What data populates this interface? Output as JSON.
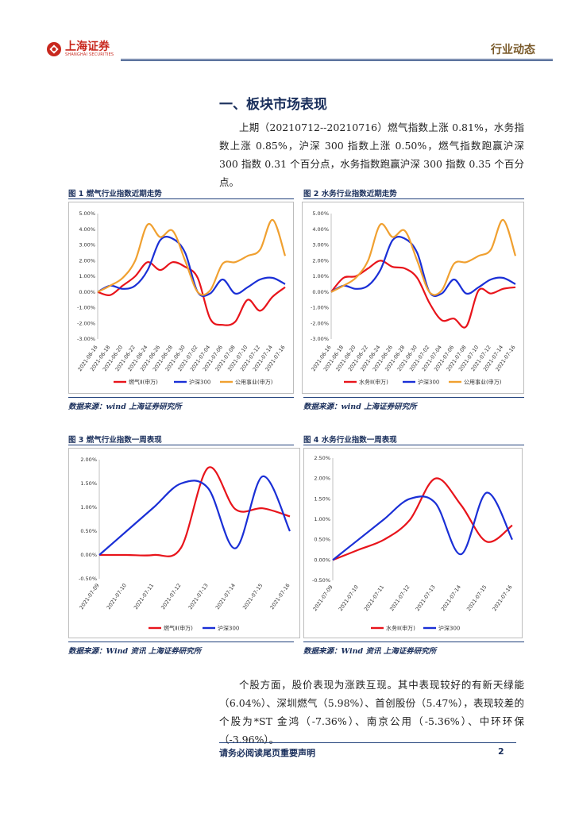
{
  "header": {
    "brand_cn": "上海证券",
    "brand_en": "SHANGHAI SECURITIES",
    "doc_type": "行业动态"
  },
  "section": {
    "title": "一、板块市场表现",
    "paragraph1": "上期（20210712--20210716）燃气指数上涨 0.81%，水务指数上涨 0.85%，沪深 300 指数上涨 0.50%，燃气指数跑赢沪深 300 指数 0.31 个百分点，水务指数跑赢沪深 300 指数 0.35 个百分点。",
    "paragraph2": "个股方面，股价表现为涨跌互现。其中表现较好的有新天绿能（6.04%）、深圳燃气（5.98%）、首创股份（5.47%），表现较差的个股为*ST 金鸿（-7.36%）、南京公用（-5.36%）、中环环保（-3.96%）。"
  },
  "figures": {
    "fig1_title": "图 1 燃气行业指数近期走势",
    "fig2_title": "图 2 水务行业指数近期走势",
    "fig3_title": "图 3  燃气行业指数一周表现",
    "fig4_title": "图 4  水务行业指数一周表现",
    "source1": "数据来源：wind 上海证券研究所",
    "source2": "数据来源：wind 上海证券研究所",
    "source3": "数据来源：Wind 资讯  上海证券研究所",
    "source4": "数据来源：Wind 资讯  上海证券研究所"
  },
  "footer": {
    "disclaimer": "请务必阅读尾页重要声明",
    "page": "2"
  },
  "colors": {
    "red": "#e8141b",
    "blue": "#1a2fd6",
    "orange": "#f0a030",
    "navy": "#1a2f5c",
    "brand": "#c8281e"
  },
  "chart_data": [
    {
      "type": "line",
      "title": "图 1 燃气行业指数近期走势",
      "categories": [
        "2021-06-16",
        "2021-06-18",
        "2021-06-20",
        "2021-06-22",
        "2021-06-24",
        "2021-06-26",
        "2021-06-28",
        "2021-06-30",
        "2021-07-02",
        "2021-07-04",
        "2021-07-06",
        "2021-07-08",
        "2021-07-10",
        "2021-07-12",
        "2021-07-14",
        "2021-07-16"
      ],
      "tick_labels": [
        "2021-06-16",
        "2021-06-18",
        "2021-06-20",
        "2021-06-22",
        "2021-06-24",
        "2021-06-26",
        "2021-06-28",
        "2021-06-30",
        "2021-07-02",
        "2021-07-04",
        "2021-07-06",
        "2021-07-08",
        "2021-07-10",
        "2021-07-12",
        "2021-07-14",
        "2021-07-16"
      ],
      "y_tick_labels": [
        "5.00%",
        "4.00%",
        "3.00%",
        "2.00%",
        "1.00%",
        "0.00%",
        "-1.00%",
        "-2.00%",
        "-3.00%"
      ],
      "ylim": [
        -3,
        5
      ],
      "series": [
        {
          "name": "燃气Ⅱ(申万)",
          "color": "#e8141b",
          "values": [
            0.0,
            -0.2,
            0.4,
            1.0,
            1.9,
            1.4,
            1.9,
            1.6,
            0.9,
            -1.7,
            -2.1,
            -1.9,
            -0.5,
            -1.2,
            -0.3,
            0.3
          ]
        },
        {
          "name": "沪深300",
          "color": "#1a2fd6",
          "values": [
            0.0,
            0.4,
            0.2,
            0.4,
            1.4,
            3.3,
            3.4,
            2.5,
            0.0,
            -0.1,
            0.8,
            -0.1,
            0.3,
            0.8,
            0.9,
            0.5
          ]
        },
        {
          "name": "公用事业(申万)",
          "color": "#f0a030",
          "values": [
            0.0,
            0.4,
            0.9,
            2.0,
            4.3,
            3.5,
            3.9,
            2.0,
            0.0,
            0.1,
            1.8,
            1.9,
            2.3,
            2.7,
            4.6,
            2.3
          ]
        }
      ],
      "legend": [
        "燃气Ⅱ(申万)",
        "沪深300",
        "公用事业(申万)"
      ]
    },
    {
      "type": "line",
      "title": "图 2 水务行业指数近期走势",
      "categories": [
        "2021-06-16",
        "2021-06-18",
        "2021-06-20",
        "2021-06-22",
        "2021-06-24",
        "2021-06-26",
        "2021-06-28",
        "2021-06-30",
        "2021-07-02",
        "2021-07-04",
        "2021-07-06",
        "2021-07-08",
        "2021-07-10",
        "2021-07-12",
        "2021-07-14",
        "2021-07-16"
      ],
      "tick_labels": [
        "2021-06-16",
        "2021-06-18",
        "2021-06-20",
        "2021-06-22",
        "2021-06-24",
        "2021-06-26",
        "2021-06-28",
        "2021-06-30",
        "2021-07-02",
        "2021-07-04",
        "2021-07-06",
        "2021-07-08",
        "2021-07-10",
        "2021-07-12",
        "2021-07-14",
        "2021-07-16"
      ],
      "y_tick_labels": [
        "5.00%",
        "4.00%",
        "3.00%",
        "2.00%",
        "1.00%",
        "0.00%",
        "-1.00%",
        "-2.00%",
        "-3.00%"
      ],
      "ylim": [
        -3,
        5
      ],
      "series": [
        {
          "name": "水务Ⅱ(申万)",
          "color": "#e8141b",
          "values": [
            0.0,
            0.9,
            1.0,
            1.5,
            2.0,
            1.6,
            1.5,
            0.9,
            -0.7,
            -1.8,
            -1.7,
            -2.2,
            0.1,
            -0.1,
            0.2,
            0.3
          ]
        },
        {
          "name": "沪深300",
          "color": "#1a2fd6",
          "values": [
            0.0,
            0.4,
            0.2,
            0.4,
            1.4,
            3.3,
            3.4,
            2.5,
            0.0,
            -0.1,
            0.8,
            -0.1,
            0.3,
            0.8,
            0.9,
            0.5
          ]
        },
        {
          "name": "公用事业(申万)",
          "color": "#f0a030",
          "values": [
            0.0,
            0.4,
            0.9,
            2.0,
            4.3,
            3.5,
            3.9,
            2.0,
            0.0,
            0.1,
            1.8,
            1.9,
            2.3,
            2.7,
            4.6,
            2.3
          ]
        }
      ],
      "legend": [
        "水务Ⅱ(申万)",
        "沪深300",
        "公用事业(申万)"
      ]
    },
    {
      "type": "line",
      "title": "图 3  燃气行业指数一周表现",
      "categories": [
        "2021-07-09",
        "2021-07-10",
        "2021-07-11",
        "2021-07-12",
        "2021-07-13",
        "2021-07-14",
        "2021-07-15",
        "2021-07-16"
      ],
      "tick_labels": [
        "2021-07-09",
        "2021-07-10",
        "2021-07-11",
        "2021-07-12",
        "2021-07-13",
        "2021-07-14",
        "2021-07-15",
        "2021-07-16"
      ],
      "y_tick_labels": [
        "2.00%",
        "1.50%",
        "1.00%",
        "0.50%",
        "0.00%",
        "-0.50%"
      ],
      "ylim": [
        -0.5,
        2.0
      ],
      "series": [
        {
          "name": "燃气Ⅱ(申万)",
          "color": "#e8141b",
          "values": [
            0.0,
            0.0,
            0.0,
            0.15,
            1.83,
            0.96,
            0.98,
            0.81
          ]
        },
        {
          "name": "沪深300",
          "color": "#1a2fd6",
          "values": [
            0.0,
            0.5,
            1.0,
            1.5,
            1.4,
            0.14,
            1.65,
            0.5
          ]
        }
      ],
      "legend": [
        "燃气Ⅱ(申万)",
        "沪深300"
      ]
    },
    {
      "type": "line",
      "title": "图 4  水务行业指数一周表现",
      "categories": [
        "2021-07-09",
        "2021-07-10",
        "2021-07-11",
        "2021-07-12",
        "2021-07-13",
        "2021-07-14",
        "2021-07-15",
        "2021-07-16"
      ],
      "tick_labels": [
        "2021-07-09",
        "2021-07-10",
        "2021-07-11",
        "2021-07-12",
        "2021-07-13",
        "2021-07-14",
        "2021-07-15",
        "2021-07-16"
      ],
      "y_tick_labels": [
        "2.50%",
        "2.00%",
        "1.50%",
        "1.00%",
        "0.50%",
        "0.00%",
        "-0.50%"
      ],
      "ylim": [
        -0.5,
        2.5
      ],
      "series": [
        {
          "name": "水务Ⅱ(申万)",
          "color": "#e8141b",
          "values": [
            0.0,
            0.25,
            0.5,
            0.98,
            2.0,
            1.35,
            0.45,
            0.85
          ]
        },
        {
          "name": "沪深300",
          "color": "#1a2fd6",
          "values": [
            0.0,
            0.5,
            1.0,
            1.5,
            1.4,
            0.14,
            1.65,
            0.5
          ]
        }
      ],
      "legend": [
        "水务Ⅱ(申万)",
        "沪深300"
      ]
    }
  ]
}
